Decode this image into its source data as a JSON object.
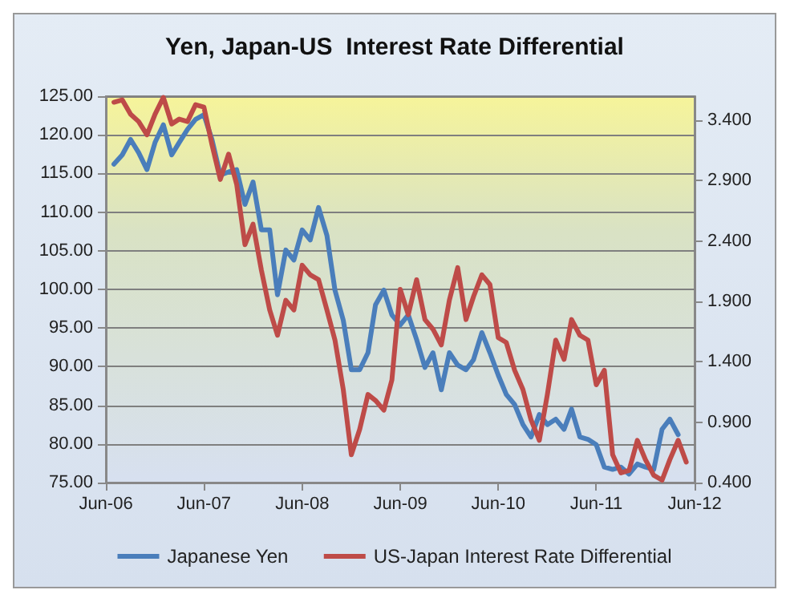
{
  "chart_data": {
    "type": "line",
    "title": "Yen, Japan-US  Interest Rate Differential",
    "x": [
      "2006-07",
      "2006-08",
      "2006-09",
      "2006-10",
      "2006-11",
      "2006-12",
      "2007-01",
      "2007-02",
      "2007-03",
      "2007-04",
      "2007-05",
      "2007-06",
      "2007-07",
      "2007-08",
      "2007-09",
      "2007-10",
      "2007-11",
      "2007-12",
      "2008-01",
      "2008-02",
      "2008-03",
      "2008-04",
      "2008-05",
      "2008-06",
      "2008-07",
      "2008-08",
      "2008-09",
      "2008-10",
      "2008-11",
      "2008-12",
      "2009-01",
      "2009-02",
      "2009-03",
      "2009-04",
      "2009-05",
      "2009-06",
      "2009-07",
      "2009-08",
      "2009-09",
      "2009-10",
      "2009-11",
      "2009-12",
      "2010-01",
      "2010-02",
      "2010-03",
      "2010-04",
      "2010-05",
      "2010-06",
      "2010-07",
      "2010-08",
      "2010-09",
      "2010-10",
      "2010-11",
      "2010-12",
      "2011-01",
      "2011-02",
      "2011-03",
      "2011-04",
      "2011-05",
      "2011-06",
      "2011-07",
      "2011-08",
      "2011-09",
      "2011-10",
      "2011-11",
      "2011-12",
      "2012-01",
      "2012-02",
      "2012-03",
      "2012-04",
      "2012-05"
    ],
    "series": [
      {
        "name": "Japanese Yen",
        "color": "#4a7ebb",
        "values": [
          116.2,
          117.4,
          119.4,
          117.7,
          115.5,
          119,
          121.3,
          117.4,
          119,
          120.7,
          122,
          122.6,
          119.4,
          114.8,
          115.2,
          115.5,
          111,
          113.9,
          107.7,
          107.7,
          99.3,
          105.1,
          103.8,
          107.7,
          106.4,
          110.6,
          107,
          99.9,
          96,
          89.6,
          89.6,
          91.8,
          98,
          99.9,
          96.7,
          95.4,
          96.7,
          93.5,
          89.9,
          91.8,
          87,
          91.8,
          90.2,
          89.6,
          90.9,
          94.4,
          91.8,
          88.9,
          86.4,
          85.1,
          82.5,
          80.9,
          83.8,
          82.5,
          83.2,
          81.9,
          84.5,
          80.9,
          80.6,
          79.9,
          77,
          76.7,
          77,
          76.1,
          77.4,
          77,
          76.7,
          81.9,
          83.2,
          81.2,
          null
        ]
      },
      {
        "name": "US-Japan Interest Rate Differential",
        "color": "#be4b48",
        "axis": "y2",
        "values": [
          3.55,
          3.57,
          3.45,
          3.39,
          3.28,
          3.45,
          3.59,
          3.37,
          3.41,
          3.39,
          3.53,
          3.51,
          3.2,
          2.91,
          3.12,
          2.87,
          2.37,
          2.54,
          2.16,
          1.83,
          1.62,
          1.91,
          1.83,
          2.2,
          2.12,
          2.08,
          1.83,
          1.58,
          1.17,
          0.63,
          0.84,
          1.13,
          1.08,
          1.0,
          1.25,
          2.0,
          1.79,
          2.08,
          1.75,
          1.67,
          1.54,
          1.91,
          2.18,
          1.75,
          1.94,
          2.12,
          2.04,
          1.6,
          1.56,
          1.33,
          1.17,
          0.92,
          0.75,
          1.13,
          1.58,
          1.42,
          1.75,
          1.62,
          1.58,
          1.21,
          1.33,
          0.63,
          0.48,
          0.5,
          0.75,
          0.59,
          0.46,
          0.42,
          0.59,
          0.75,
          0.57
        ]
      }
    ],
    "xlim": [
      "2006-06",
      "2012-06"
    ],
    "xticks": [
      {
        "value": "2006-06",
        "label": "Jun-06"
      },
      {
        "value": "2007-06",
        "label": "Jun-07"
      },
      {
        "value": "2008-06",
        "label": "Jun-08"
      },
      {
        "value": "2009-06",
        "label": "Jun-09"
      },
      {
        "value": "2010-06",
        "label": "Jun-10"
      },
      {
        "value": "2011-06",
        "label": "Jun-11"
      },
      {
        "value": "2012-06",
        "label": "Jun-12"
      }
    ],
    "ylim": [
      75,
      125
    ],
    "yticks": [
      {
        "value": 75,
        "label": "75.00"
      },
      {
        "value": 80,
        "label": "80.00"
      },
      {
        "value": 85,
        "label": "85.00"
      },
      {
        "value": 90,
        "label": "90.00"
      },
      {
        "value": 95,
        "label": "95.00"
      },
      {
        "value": 100,
        "label": "100.00"
      },
      {
        "value": 105,
        "label": "105.00"
      },
      {
        "value": 110,
        "label": "110.00"
      },
      {
        "value": 115,
        "label": "115.00"
      },
      {
        "value": 120,
        "label": "120.00"
      },
      {
        "value": 125,
        "label": "125.00"
      }
    ],
    "y2lim": [
      0.4,
      3.6
    ],
    "y2ticks": [
      {
        "value": 0.4,
        "label": "0.400"
      },
      {
        "value": 0.9,
        "label": "0.900"
      },
      {
        "value": 1.4,
        "label": "1.400"
      },
      {
        "value": 1.9,
        "label": "1.900"
      },
      {
        "value": 2.4,
        "label": "2.400"
      },
      {
        "value": 2.9,
        "label": "2.900"
      },
      {
        "value": 3.4,
        "label": "3.400"
      }
    ],
    "grid": "y",
    "legend": "bottom",
    "marker": "none",
    "line_style": "solid"
  }
}
